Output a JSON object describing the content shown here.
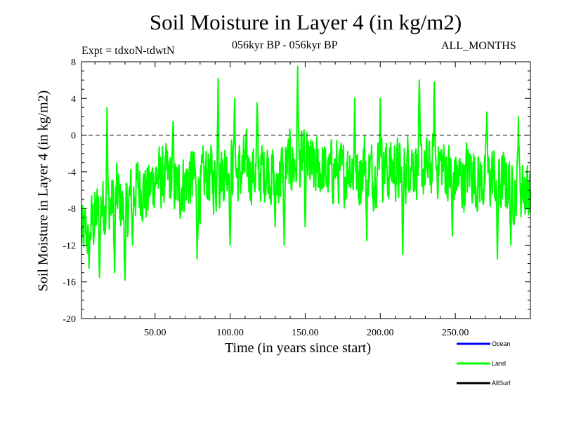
{
  "chart_data": {
    "type": "line",
    "title": "Soil Moisture in Layer 4 (in kg/m2)",
    "subtitle": "056kyr BP - 056kyr BP",
    "expt_label": "Expt = tdxoN-tdwtN",
    "period_label": "ALL_MONTHS",
    "xlabel": "Time (in years since start)",
    "ylabel": "Soil Moisture in Layer 4 (in kg/m2)",
    "xlim": [
      1,
      300
    ],
    "ylim": [
      -20,
      8
    ],
    "x_ticks": [
      50,
      100,
      150,
      200,
      250
    ],
    "x_tick_labels": [
      "50.00",
      "100.00",
      "150.00",
      "200.00",
      "250.00"
    ],
    "y_ticks": [
      8,
      4,
      0,
      -4,
      -8,
      -12,
      -16,
      -20
    ],
    "y_tick_labels": [
      "8",
      "4",
      "0",
      "-4",
      "-8",
      "-12",
      "-16",
      "-20"
    ],
    "reference_line": 0,
    "legend_position": "bottom-right",
    "series": [
      {
        "name": "Ocean",
        "color": "#0000ff",
        "values": []
      },
      {
        "name": "Land",
        "color": "#00ff00",
        "x": [
          1,
          5,
          10,
          15,
          20,
          25,
          30,
          35,
          40,
          45,
          50,
          55,
          60,
          65,
          70,
          75,
          80,
          85,
          90,
          95,
          100,
          105,
          110,
          115,
          120,
          125,
          130,
          135,
          140,
          145,
          150,
          155,
          160,
          165,
          170,
          175,
          180,
          185,
          190,
          195,
          200,
          205,
          210,
          215,
          220,
          225,
          230,
          235,
          240,
          245,
          250,
          255,
          260,
          265,
          270,
          275,
          280,
          285,
          290,
          295,
          300
        ],
        "values": [
          -11,
          -10.5,
          -9,
          -7.5,
          -8,
          -6.5,
          -9,
          -6,
          -5.5,
          -6.5,
          -4.5,
          -5,
          -4.5,
          -6,
          -5,
          -4.5,
          -6,
          -4,
          -5,
          -4,
          -3,
          -4.5,
          -3.5,
          -4,
          -4,
          -3.5,
          -5,
          -4,
          -3,
          -3.5,
          -2.5,
          -4,
          -3.5,
          -4.5,
          -3.5,
          -4.5,
          -3,
          -5,
          -2.5,
          -4.5,
          -3,
          -4,
          -3.5,
          -4.5,
          -2.5,
          -3.5,
          -4,
          -3.5,
          -3,
          -4,
          -4.5,
          -5,
          -3.5,
          -5,
          -5,
          -4.5,
          -5.5,
          -5,
          -6,
          -5.5,
          -6
        ],
        "x_extremes": [
          6,
          13,
          18,
          23,
          30,
          35,
          62,
          78,
          92,
          100,
          103,
          118,
          130,
          136,
          145,
          150,
          183,
          191,
          200,
          215,
          226,
          236,
          248,
          271,
          278,
          287,
          292
        ],
        "y_extremes": [
          -14.5,
          -15.5,
          3,
          -15,
          -15.8,
          -12,
          1.5,
          -13.5,
          6.2,
          -12,
          4,
          3.5,
          -10,
          -12,
          7.5,
          -10,
          4,
          -11.5,
          4,
          -13,
          6,
          5.8,
          -11,
          2.5,
          -13.5,
          -12,
          2
        ]
      },
      {
        "name": "AllSurf",
        "color": "#000000",
        "values": []
      }
    ]
  }
}
